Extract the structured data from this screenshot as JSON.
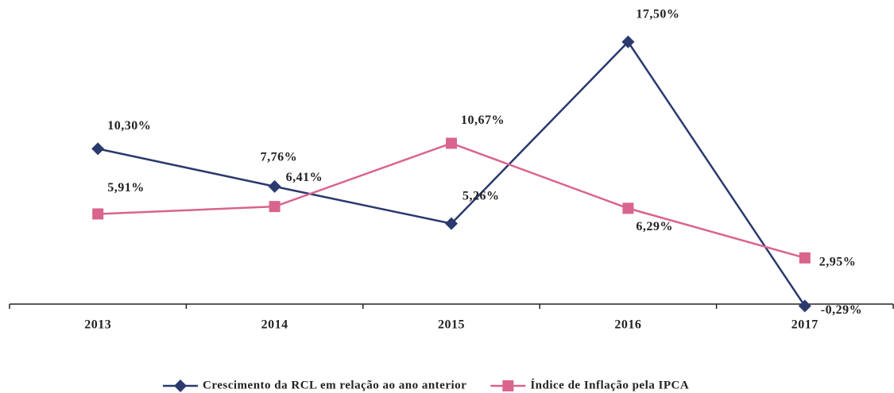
{
  "chart_data": {
    "type": "line",
    "categories": [
      "2013",
      "2014",
      "2015",
      "2016",
      "2017"
    ],
    "series": [
      {
        "name": "Crescimento da RCL em relação ao ano anterior",
        "color": "#2b3a6e",
        "marker": "diamond",
        "values": [
          10.3,
          7.76,
          5.26,
          17.5,
          -0.29
        ],
        "value_labels": [
          "10,30%",
          "7,76%",
          "5,26%",
          "17,50%",
          "-0,29%"
        ]
      },
      {
        "name": "Índice de Inflação pela IPCA",
        "color": "#d9648e",
        "marker": "square",
        "values": [
          5.91,
          6.41,
          10.67,
          6.29,
          2.95
        ],
        "value_labels": [
          "5,91%",
          "6,41%",
          "10,67%",
          "6,29%",
          "2,95%"
        ]
      }
    ],
    "ylim": [
      0,
      20
    ],
    "legend": "bottom"
  }
}
